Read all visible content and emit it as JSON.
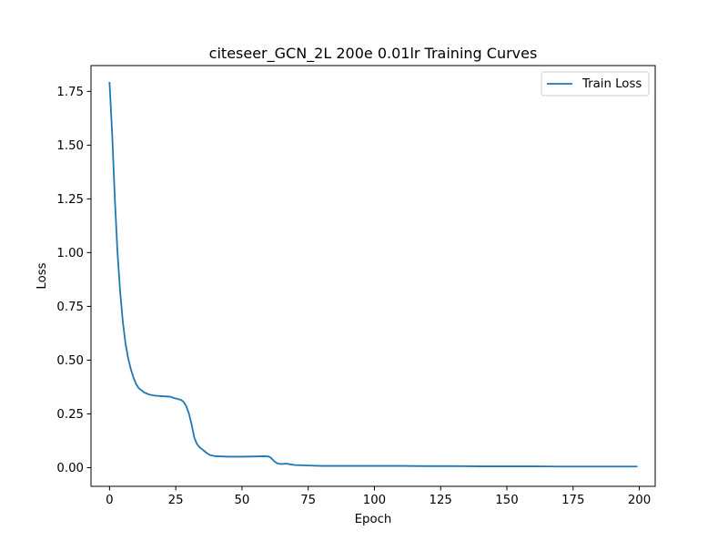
{
  "chart_data": {
    "type": "line",
    "title": "citeseer_GCN_2L  200e  0.01lr  Training Curves",
    "xlabel": "Epoch",
    "ylabel": "Loss",
    "xlim": [
      -7,
      206
    ],
    "ylim": [
      -0.087,
      1.87
    ],
    "grid": false,
    "legend_position": "top-right",
    "x_ticks": [
      0,
      25,
      50,
      75,
      100,
      125,
      150,
      175,
      200
    ],
    "x_tick_labels": [
      "0",
      "25",
      "50",
      "75",
      "100",
      "125",
      "150",
      "175",
      "200"
    ],
    "y_ticks": [
      0.0,
      0.25,
      0.5,
      0.75,
      1.0,
      1.25,
      1.5,
      1.75
    ],
    "y_tick_labels": [
      "0.00",
      "0.25",
      "0.50",
      "0.75",
      "1.00",
      "1.25",
      "1.50",
      "1.75"
    ],
    "series": [
      {
        "name": "Train Loss",
        "color": "#1f77b4",
        "x": [
          0,
          1,
          2,
          3,
          4,
          5,
          6,
          7,
          8,
          9,
          10,
          11,
          12,
          13,
          14,
          15,
          17,
          20,
          23,
          24,
          25,
          27,
          28,
          29,
          30,
          31,
          32,
          33,
          34,
          35,
          36,
          37,
          38,
          40,
          45,
          50,
          55,
          58,
          60,
          61,
          62,
          63,
          64,
          65,
          66,
          67,
          68,
          70,
          75,
          80,
          90,
          100,
          110,
          120,
          130,
          140,
          150,
          160,
          170,
          180,
          190,
          199
        ],
        "y": [
          1.79,
          1.55,
          1.25,
          1.0,
          0.82,
          0.68,
          0.58,
          0.51,
          0.46,
          0.42,
          0.39,
          0.37,
          0.36,
          0.35,
          0.345,
          0.34,
          0.335,
          0.332,
          0.33,
          0.325,
          0.322,
          0.315,
          0.305,
          0.285,
          0.25,
          0.2,
          0.14,
          0.11,
          0.095,
          0.085,
          0.075,
          0.065,
          0.058,
          0.053,
          0.051,
          0.051,
          0.052,
          0.053,
          0.052,
          0.045,
          0.032,
          0.022,
          0.018,
          0.017,
          0.018,
          0.018,
          0.016,
          0.012,
          0.01,
          0.008,
          0.008,
          0.008,
          0.008,
          0.007,
          0.007,
          0.006,
          0.006,
          0.006,
          0.005,
          0.005,
          0.005,
          0.005
        ]
      }
    ]
  }
}
